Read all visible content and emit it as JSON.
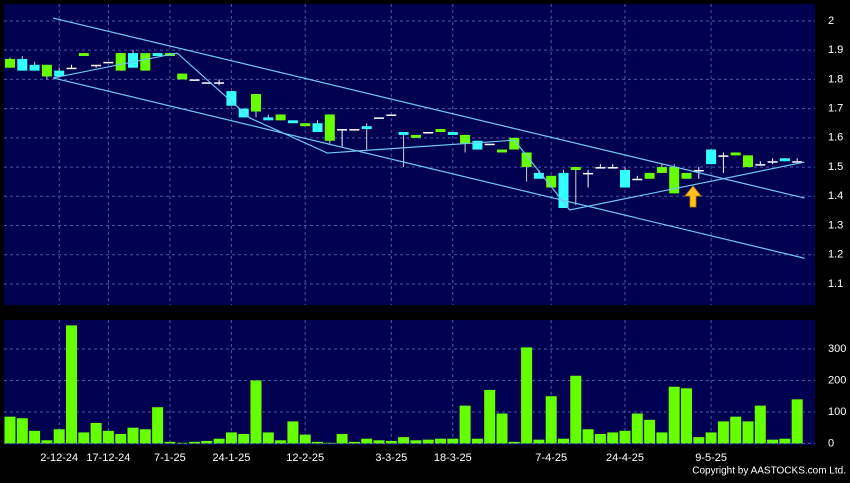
{
  "chart_data": {
    "type": "candlestick",
    "copyright": "Copyright by AASTOCKS.com Ltd.",
    "up_color": "#66ff00",
    "down_color": "#33ffff",
    "doji_color": "#ffffff",
    "grid": true,
    "ylim": [
      1.028,
      2.058
    ],
    "yticks": [
      1.1,
      1.2,
      1.3,
      1.4,
      1.5,
      1.6,
      1.7,
      1.8,
      1.9,
      2
    ],
    "categories": [
      null,
      null,
      null,
      null,
      "2-12-24",
      null,
      null,
      null,
      "17-12-24",
      null,
      null,
      null,
      null,
      "7-1-25",
      null,
      null,
      null,
      null,
      "24-1-25",
      null,
      null,
      null,
      null,
      null,
      "12-2-25",
      null,
      null,
      null,
      null,
      null,
      null,
      "3-3-25",
      null,
      null,
      null,
      null,
      "18-3-25",
      null,
      null,
      null,
      null,
      null,
      null,
      null,
      "7-4-25",
      null,
      null,
      null,
      null,
      null,
      "24-4-25",
      null,
      null,
      null,
      null,
      null,
      null,
      "9-5-25",
      null,
      null,
      null,
      null,
      null,
      null,
      null
    ],
    "open": [
      1.84,
      1.87,
      1.85,
      1.81,
      1.83,
      1.84,
      1.88,
      1.85,
      1.86,
      1.83,
      1.89,
      1.83,
      1.89,
      1.88,
      1.8,
      1.8,
      1.79,
      1.79,
      1.76,
      1.7,
      1.69,
      1.67,
      1.66,
      1.66,
      1.64,
      1.65,
      1.59,
      1.63,
      1.63,
      1.64,
      1.67,
      1.68,
      1.62,
      1.6,
      1.62,
      1.62,
      1.62,
      1.58,
      1.59,
      1.58,
      1.55,
      1.56,
      1.5,
      1.48,
      1.43,
      1.48,
      1.49,
      1.48,
      1.5,
      1.5,
      1.49,
      1.46,
      1.46,
      1.48,
      1.41,
      1.46,
      1.49,
      1.56,
      1.54,
      1.54,
      1.5,
      1.51,
      1.52,
      1.53,
      1.52
    ],
    "high": [
      1.875,
      1.88,
      1.86,
      1.85,
      1.84,
      1.85,
      1.89,
      1.85,
      1.86,
      1.89,
      1.9,
      1.89,
      1.89,
      1.89,
      1.82,
      1.8,
      1.79,
      1.8,
      1.76,
      1.7,
      1.75,
      1.68,
      1.68,
      1.66,
      1.65,
      1.66,
      1.68,
      1.63,
      1.63,
      1.65,
      1.67,
      1.68,
      1.62,
      1.61,
      1.62,
      1.63,
      1.62,
      1.61,
      1.59,
      1.58,
      1.56,
      1.6,
      1.55,
      1.49,
      1.47,
      1.49,
      1.5,
      1.49,
      1.51,
      1.51,
      1.5,
      1.47,
      1.48,
      1.51,
      1.51,
      1.48,
      1.5,
      1.56,
      1.55,
      1.55,
      1.54,
      1.52,
      1.53,
      1.53,
      1.53
    ],
    "low": [
      1.84,
      1.83,
      1.83,
      1.8,
      1.81,
      1.84,
      1.88,
      1.84,
      1.86,
      1.83,
      1.84,
      1.83,
      1.88,
      1.88,
      1.8,
      1.8,
      1.79,
      1.78,
      1.71,
      1.67,
      1.67,
      1.66,
      1.66,
      1.65,
      1.64,
      1.62,
      1.58,
      1.57,
      1.63,
      1.56,
      1.67,
      1.68,
      1.5,
      1.6,
      1.62,
      1.62,
      1.61,
      1.55,
      1.56,
      1.58,
      1.55,
      1.56,
      1.45,
      1.46,
      1.43,
      1.36,
      1.37,
      1.43,
      1.5,
      1.5,
      1.43,
      1.46,
      1.46,
      1.48,
      1.41,
      1.46,
      1.46,
      1.51,
      1.48,
      1.54,
      1.5,
      1.51,
      1.51,
      1.52,
      1.52
    ],
    "close": [
      1.87,
      1.83,
      1.83,
      1.85,
      1.81,
      1.84,
      1.89,
      1.85,
      1.86,
      1.89,
      1.84,
      1.89,
      1.88,
      1.89,
      1.82,
      1.8,
      1.79,
      1.79,
      1.71,
      1.67,
      1.75,
      1.66,
      1.68,
      1.65,
      1.65,
      1.62,
      1.68,
      1.63,
      1.63,
      1.63,
      1.67,
      1.68,
      1.61,
      1.61,
      1.62,
      1.63,
      1.61,
      1.61,
      1.56,
      1.58,
      1.56,
      1.6,
      1.55,
      1.46,
      1.47,
      1.36,
      1.5,
      1.48,
      1.5,
      1.5,
      1.43,
      1.46,
      1.48,
      1.5,
      1.5,
      1.48,
      1.49,
      1.51,
      1.54,
      1.55,
      1.54,
      1.51,
      1.52,
      1.52,
      1.52
    ],
    "lines": [
      {
        "color": "#6fc8f0",
        "x": [
          3.5,
          64.6
        ],
        "y": [
          2.01,
          1.394
        ]
      },
      {
        "color": "#6fc8f0",
        "x": [
          3.5,
          64.6
        ],
        "y": [
          1.805,
          1.188
        ]
      },
      {
        "color": "#6fc8f0",
        "x": [
          3.5,
          13.6,
          19.5,
          25.8,
          41,
          45.5,
          64.6
        ],
        "y": [
          1.805,
          1.89,
          1.668,
          1.548,
          1.592,
          1.353,
          1.517
        ]
      }
    ],
    "volume": {
      "color": "#66ff00",
      "ylim": [
        -5,
        392
      ],
      "yticks": [
        0,
        100,
        200,
        300
      ],
      "values": [
        85,
        80,
        40,
        10,
        45,
        375,
        35,
        65,
        40,
        30,
        50,
        45,
        115,
        5,
        2,
        5,
        8,
        15,
        35,
        30,
        200,
        35,
        10,
        70,
        28,
        5,
        2,
        30,
        5,
        15,
        10,
        8,
        20,
        10,
        12,
        15,
        15,
        120,
        15,
        170,
        95,
        5,
        305,
        12,
        150,
        15,
        215,
        45,
        30,
        35,
        40,
        95,
        75,
        35,
        180,
        175,
        20,
        35,
        70,
        85,
        70,
        120,
        12,
        15,
        140
      ]
    }
  }
}
